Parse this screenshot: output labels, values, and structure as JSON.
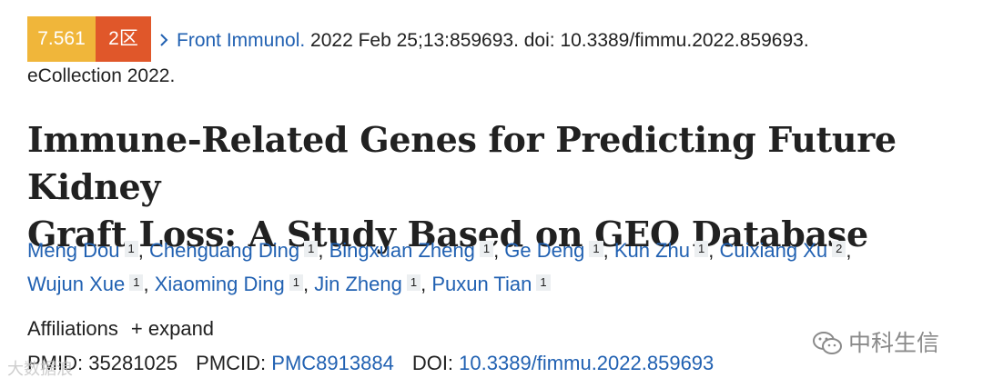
{
  "citation": {
    "impact_factor": "7.561",
    "zone": "2区",
    "journal": "Front Immunol.",
    "details": " 2022 Feb 25;13:859693. doi: 10.3389/fimmu.2022.859693.",
    "ecollection": "eCollection 2022."
  },
  "article": {
    "title_line1": "Immune-Related Genes for Predicting Future Kidney",
    "title_line2": "Graft Loss: A Study Based on GEO Database"
  },
  "authors": [
    {
      "name": "Meng Dou",
      "aff": "1"
    },
    {
      "name": "Chenguang Ding",
      "aff": "1"
    },
    {
      "name": "Bingxuan Zheng",
      "aff": "1"
    },
    {
      "name": "Ge Deng",
      "aff": "1"
    },
    {
      "name": "Kun Zhu",
      "aff": "1"
    },
    {
      "name": "Cuixiang Xu",
      "aff": "2"
    },
    {
      "name": "Wujun Xue",
      "aff": "1"
    },
    {
      "name": "Xiaoming Ding",
      "aff": "1"
    },
    {
      "name": "Jin Zheng",
      "aff": "1"
    },
    {
      "name": "Puxun Tian",
      "aff": "1"
    }
  ],
  "affiliations": {
    "label": "Affiliations",
    "expand_label": "expand",
    "plus_glyph": "+"
  },
  "identifiers": {
    "pmid_label": "PMID:",
    "pmid": "35281025",
    "pmcid_label": "PMCID:",
    "pmcid": "PMC8913884",
    "doi_label": "DOI:",
    "doi": "10.3389/fimmu.2022.859693"
  },
  "watermarks": {
    "right": "中科生信",
    "left": "大数据浪"
  },
  "icons": {
    "chevron": "chevron-right-icon",
    "wechat": "wechat-icon",
    "plus": "plus-icon"
  },
  "colors": {
    "link": "#2161b2",
    "impact_badge": "#f0b63a",
    "zone_badge": "#e0572a"
  }
}
